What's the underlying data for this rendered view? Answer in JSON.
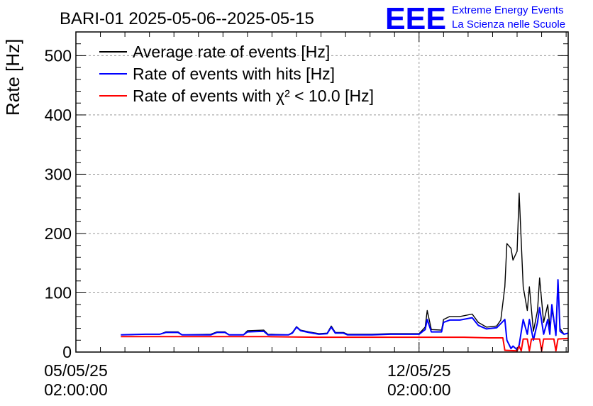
{
  "header": {
    "title": "BARI-01 2025-05-06--2025-05-15",
    "logo_text": "EEE",
    "logo_line1": "Extreme Energy Events",
    "logo_line2": "La Scienza nelle Scuole"
  },
  "colors": {
    "average": "#000000",
    "hits": "#0000ff",
    "chi2": "#ff0000",
    "logo": "#0000ff",
    "grid": "#999999"
  },
  "chart_data": {
    "type": "line",
    "ylabel": "Rate [Hz]",
    "ylim": [
      0,
      540
    ],
    "xlim": [
      "2025-05-05T02:00:00",
      "2025-05-15T03:00:00"
    ],
    "yticks": [
      "0",
      "100",
      "200",
      "300",
      "400",
      "500"
    ],
    "xticks": [
      {
        "date": "05/05/25",
        "time": "02:00:00",
        "at": "2025-05-05T02:00:00"
      },
      {
        "date": "12/05/25",
        "time": "02:00:00",
        "at": "2025-05-12T02:00:00"
      }
    ],
    "grid": true,
    "legend_position": "top-left",
    "series": [
      {
        "name": "Average rate of events [Hz]",
        "color": "#000000",
        "points": [
          [
            "2025-05-06T00:00",
            29
          ],
          [
            "2025-05-06T12:00",
            30
          ],
          [
            "2025-05-06T19:00",
            30
          ],
          [
            "2025-05-06T22:00",
            34
          ],
          [
            "2025-05-07T04:00",
            34
          ],
          [
            "2025-05-07T06:00",
            29
          ],
          [
            "2025-05-07T20:00",
            30
          ],
          [
            "2025-05-07T23:00",
            34
          ],
          [
            "2025-05-08T03:00",
            34
          ],
          [
            "2025-05-08T05:00",
            29
          ],
          [
            "2025-05-08T12:00",
            29
          ],
          [
            "2025-05-08T14:00",
            36
          ],
          [
            "2025-05-08T22:00",
            37
          ],
          [
            "2025-05-09T00:00",
            30
          ],
          [
            "2025-05-09T10:00",
            29
          ],
          [
            "2025-05-09T12:00",
            33
          ],
          [
            "2025-05-09T14:00",
            43
          ],
          [
            "2025-05-09T16:00",
            37
          ],
          [
            "2025-05-09T20:00",
            34
          ],
          [
            "2025-05-10T01:00",
            31
          ],
          [
            "2025-05-10T05:00",
            32
          ],
          [
            "2025-05-10T07:00",
            44
          ],
          [
            "2025-05-10T09:00",
            33
          ],
          [
            "2025-05-10T13:00",
            33
          ],
          [
            "2025-05-10T15:00",
            30
          ],
          [
            "2025-05-11T03:00",
            30
          ],
          [
            "2025-05-11T12:00",
            31
          ],
          [
            "2025-05-12T02:00",
            31
          ],
          [
            "2025-05-12T05:00",
            42
          ],
          [
            "2025-05-12T06:00",
            70
          ],
          [
            "2025-05-12T08:00",
            38
          ],
          [
            "2025-05-12T13:00",
            37
          ],
          [
            "2025-05-12T14:00",
            55
          ],
          [
            "2025-05-12T17:00",
            60
          ],
          [
            "2025-05-12T22:00",
            60
          ],
          [
            "2025-05-13T04:00",
            64
          ],
          [
            "2025-05-13T07:00",
            50
          ],
          [
            "2025-05-13T11:00",
            42
          ],
          [
            "2025-05-13T16:00",
            44
          ],
          [
            "2025-05-13T18:00",
            54
          ],
          [
            "2025-05-13T20:00",
            110
          ],
          [
            "2025-05-13T21:00",
            183
          ],
          [
            "2025-05-13T23:00",
            175
          ],
          [
            "2025-05-14T00:00",
            155
          ],
          [
            "2025-05-14T02:00",
            170
          ],
          [
            "2025-05-14T03:00",
            268
          ],
          [
            "2025-05-14T05:00",
            110
          ],
          [
            "2025-05-14T07:00",
            70
          ],
          [
            "2025-05-14T08:00",
            110
          ],
          [
            "2025-05-14T10:00",
            35
          ],
          [
            "2025-05-14T12:00",
            70
          ],
          [
            "2025-05-14T13:00",
            125
          ],
          [
            "2025-05-14T15:00",
            50
          ],
          [
            "2025-05-14T17:00",
            80
          ],
          [
            "2025-05-14T18:00",
            42
          ],
          [
            "2025-05-14T19:00",
            70
          ],
          [
            "2025-05-14T21:00",
            35
          ],
          [
            "2025-05-14T22:00",
            122
          ],
          [
            "2025-05-14T23:00",
            40
          ],
          [
            "2025-05-15T01:00",
            30
          ],
          [
            "2025-05-15T03:00",
            32
          ]
        ]
      },
      {
        "name": "Rate of events with hits [Hz]",
        "color": "#0000ff",
        "points": [
          [
            "2025-05-06T00:00",
            29
          ],
          [
            "2025-05-06T12:00",
            30
          ],
          [
            "2025-05-06T19:00",
            30
          ],
          [
            "2025-05-06T22:00",
            33
          ],
          [
            "2025-05-07T04:00",
            33
          ],
          [
            "2025-05-07T06:00",
            29
          ],
          [
            "2025-05-07T20:00",
            29
          ],
          [
            "2025-05-07T23:00",
            33
          ],
          [
            "2025-05-08T03:00",
            33
          ],
          [
            "2025-05-08T05:00",
            29
          ],
          [
            "2025-05-08T12:00",
            29
          ],
          [
            "2025-05-08T14:00",
            34
          ],
          [
            "2025-05-08T22:00",
            35
          ],
          [
            "2025-05-09T00:00",
            29
          ],
          [
            "2025-05-09T10:00",
            29
          ],
          [
            "2025-05-09T12:00",
            32
          ],
          [
            "2025-05-09T14:00",
            42
          ],
          [
            "2025-05-09T16:00",
            36
          ],
          [
            "2025-05-09T20:00",
            33
          ],
          [
            "2025-05-10T01:00",
            30
          ],
          [
            "2025-05-10T05:00",
            31
          ],
          [
            "2025-05-10T07:00",
            42
          ],
          [
            "2025-05-10T09:00",
            32
          ],
          [
            "2025-05-10T13:00",
            32
          ],
          [
            "2025-05-10T15:00",
            29
          ],
          [
            "2025-05-11T03:00",
            29
          ],
          [
            "2025-05-11T12:00",
            30
          ],
          [
            "2025-05-12T02:00",
            30
          ],
          [
            "2025-05-12T05:00",
            38
          ],
          [
            "2025-05-12T06:00",
            55
          ],
          [
            "2025-05-12T08:00",
            34
          ],
          [
            "2025-05-12T13:00",
            34
          ],
          [
            "2025-05-12T14:00",
            50
          ],
          [
            "2025-05-12T17:00",
            54
          ],
          [
            "2025-05-12T22:00",
            54
          ],
          [
            "2025-05-13T04:00",
            58
          ],
          [
            "2025-05-13T07:00",
            45
          ],
          [
            "2025-05-13T11:00",
            39
          ],
          [
            "2025-05-13T16:00",
            41
          ],
          [
            "2025-05-13T18:00",
            48
          ],
          [
            "2025-05-13T20:00",
            55
          ],
          [
            "2025-05-13T21:00",
            20
          ],
          [
            "2025-05-13T23:00",
            6
          ],
          [
            "2025-05-14T00:00",
            10
          ],
          [
            "2025-05-14T02:00",
            4
          ],
          [
            "2025-05-14T03:00",
            12
          ],
          [
            "2025-05-14T05:00",
            55
          ],
          [
            "2025-05-14T07:00",
            30
          ],
          [
            "2025-05-14T08:00",
            55
          ],
          [
            "2025-05-14T10:00",
            20
          ],
          [
            "2025-05-14T12:00",
            50
          ],
          [
            "2025-05-14T13:00",
            75
          ],
          [
            "2025-05-14T15:00",
            30
          ],
          [
            "2025-05-14T17:00",
            55
          ],
          [
            "2025-05-14T18:00",
            30
          ],
          [
            "2025-05-14T19:00",
            80
          ],
          [
            "2025-05-14T21:00",
            28
          ],
          [
            "2025-05-14T22:00",
            122
          ],
          [
            "2025-05-14T23:00",
            35
          ],
          [
            "2025-05-15T01:00",
            30
          ],
          [
            "2025-05-15T03:00",
            32
          ]
        ]
      },
      {
        "name": "Rate of events with χ² < 10.0 [Hz]",
        "color": "#ff0000",
        "points": [
          [
            "2025-05-06T00:00",
            26
          ],
          [
            "2025-05-07T00:00",
            26
          ],
          [
            "2025-05-08T00:00",
            26
          ],
          [
            "2025-05-09T00:00",
            26
          ],
          [
            "2025-05-10T00:00",
            25
          ],
          [
            "2025-05-11T00:00",
            25
          ],
          [
            "2025-05-12T00:00",
            25
          ],
          [
            "2025-05-12T12:00",
            25
          ],
          [
            "2025-05-13T00:00",
            25
          ],
          [
            "2025-05-13T12:00",
            24
          ],
          [
            "2025-05-13T19:00",
            24
          ],
          [
            "2025-05-13T20:00",
            3
          ],
          [
            "2025-05-14T02:00",
            2
          ],
          [
            "2025-05-14T03:00",
            10
          ],
          [
            "2025-05-14T04:00",
            2
          ],
          [
            "2025-05-14T05:00",
            22
          ],
          [
            "2025-05-14T07:00",
            22
          ],
          [
            "2025-05-14T08:00",
            2
          ],
          [
            "2025-05-14T09:00",
            22
          ],
          [
            "2025-05-14T13:00",
            22
          ],
          [
            "2025-05-14T14:00",
            2
          ],
          [
            "2025-05-14T15:00",
            22
          ],
          [
            "2025-05-14T20:00",
            22
          ],
          [
            "2025-05-14T21:00",
            2
          ],
          [
            "2025-05-14T22:00",
            22
          ],
          [
            "2025-05-15T03:00",
            23
          ]
        ]
      }
    ]
  }
}
